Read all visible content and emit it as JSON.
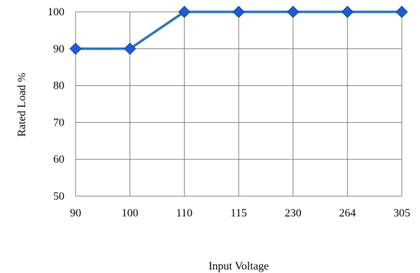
{
  "chart_data": {
    "type": "line",
    "title": "",
    "xlabel": "Input Voltage",
    "ylabel": "Rated Load %",
    "categories": [
      "90",
      "100",
      "110",
      "115",
      "230",
      "264",
      "305"
    ],
    "series": [
      {
        "values": [
          90,
          90,
          100,
          100,
          100,
          100,
          100
        ]
      }
    ],
    "ylim": [
      50,
      100
    ],
    "yticks": [
      50,
      60,
      70,
      80,
      90,
      100
    ],
    "grid": true,
    "legend": "none",
    "colors": {
      "line": "#2f74b5",
      "marker_fill": "#1e5cd6",
      "marker_stroke": "#143f9c",
      "grid": "#808080"
    }
  }
}
